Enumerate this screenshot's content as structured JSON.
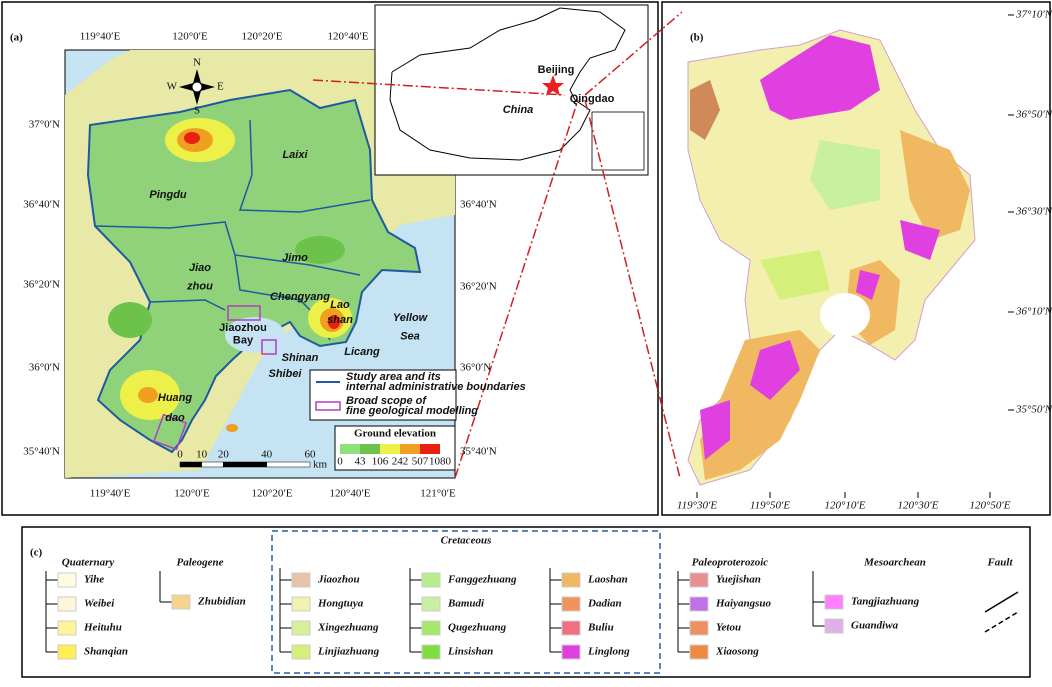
{
  "panel_a": {
    "label": "(a)",
    "top_ticks": [
      "119°40′E",
      "120°0′E",
      "120°20′E",
      "120°40′E"
    ],
    "bottom_ticks": [
      "119°40′E",
      "120°0′E",
      "120°20′E",
      "120°40′E",
      "121°0′E"
    ],
    "left_ticks": [
      "37°0′N",
      "36°40′N",
      "36°20′N",
      "36°0′N",
      "35°40′N"
    ],
    "right_ticks": [
      "36°40′N",
      "36°20′N",
      "36°0′N",
      "35°40′N"
    ],
    "places": [
      [
        "Laixi"
      ],
      [
        "Pingdu"
      ],
      [
        "Jimo"
      ],
      [
        "Jiao",
        "zhou"
      ],
      [
        "Chengyang"
      ],
      [
        "Lao",
        "shan"
      ],
      [
        "Yellow",
        "Sea"
      ],
      [
        "Jiaozhou",
        "Bay"
      ],
      [
        "Licang"
      ],
      [
        "Shinan"
      ],
      [
        "Shibei"
      ],
      [
        "Huang",
        "dao"
      ]
    ],
    "compass": [
      "N",
      "E",
      "S",
      "W"
    ],
    "inset": {
      "beijing": "Beijing",
      "qingdao": "Qingdao",
      "country": "China"
    },
    "legend": [
      {
        "text": "Study area and its internal administrative boundaries",
        "color": "#1e5aa0"
      },
      {
        "text": "Broad scope of fine geological modelling",
        "color": "#b040c0"
      }
    ],
    "elevation": {
      "title": "Ground elevation",
      "labels": [
        0,
        43,
        106,
        242,
        507,
        1080
      ],
      "colors": [
        "#8ee07a",
        "#6cc24a",
        "#eef04a",
        "#f0a020",
        "#e82010"
      ]
    },
    "scale": {
      "labels": [
        0,
        10,
        20,
        40,
        60
      ],
      "unit": "km"
    }
  },
  "panel_b": {
    "label": "(b)",
    "right_ticks": [
      "37°10′N",
      "36°50′N",
      "36°30′N",
      "36°10′N",
      "35°50′N"
    ],
    "bottom_ticks": [
      "119°30′E",
      "119°50′E",
      "120°10′E",
      "120°30′E",
      "120°50′E"
    ]
  },
  "panel_c": {
    "label": "(c)",
    "groups": [
      {
        "title": "Quaternary",
        "units": [
          {
            "name": "Yihe",
            "color": "#fffbe2"
          },
          {
            "name": "Weibei",
            "color": "#fdf6dc"
          },
          {
            "name": "Heituhu",
            "color": "#fff49a"
          },
          {
            "name": "Shanqian",
            "color": "#ffee55"
          }
        ]
      },
      {
        "title": "Paleogene",
        "units": [
          {
            "name": "Zhubidian",
            "color": "#f5d38e"
          }
        ]
      },
      {
        "title": "Cretaceous",
        "units": [
          {
            "name": "Jiaozhou",
            "color": "#e8c3a8"
          },
          {
            "name": "Hongtuya",
            "color": "#f2f2b0"
          },
          {
            "name": "Xingezhuang",
            "color": "#d7ee9a"
          },
          {
            "name": "Linjiazhuang",
            "color": "#d4f07a"
          },
          {
            "name": "Fanggezhuang",
            "color": "#b9ec8a"
          },
          {
            "name": "Bamudi",
            "color": "#c8f0a0"
          },
          {
            "name": "Qugezhuang",
            "color": "#a6e86a"
          },
          {
            "name": "Linsishan",
            "color": "#7ee040"
          },
          {
            "name": "Laoshan",
            "color": "#f0b860"
          },
          {
            "name": "Dadian",
            "color": "#f0955a"
          },
          {
            "name": "Buliu",
            "color": "#f07080"
          },
          {
            "name": "Linglong",
            "color": "#e040e0"
          }
        ]
      },
      {
        "title": "Paleoproterozoic",
        "units": [
          {
            "name": "Yuejishan",
            "color": "#e89090"
          },
          {
            "name": "Haiyangsuo",
            "color": "#c070e8"
          },
          {
            "name": "Yetou",
            "color": "#f09060"
          },
          {
            "name": "Xiaosong",
            "color": "#f08a40"
          }
        ]
      },
      {
        "title": "Mesoarchean",
        "units": [
          {
            "name": "Tangjiazhuang",
            "color": "#ff80ff"
          },
          {
            "name": "Guandiwa",
            "color": "#e0b0e8"
          }
        ]
      }
    ],
    "fault": "Fault"
  }
}
